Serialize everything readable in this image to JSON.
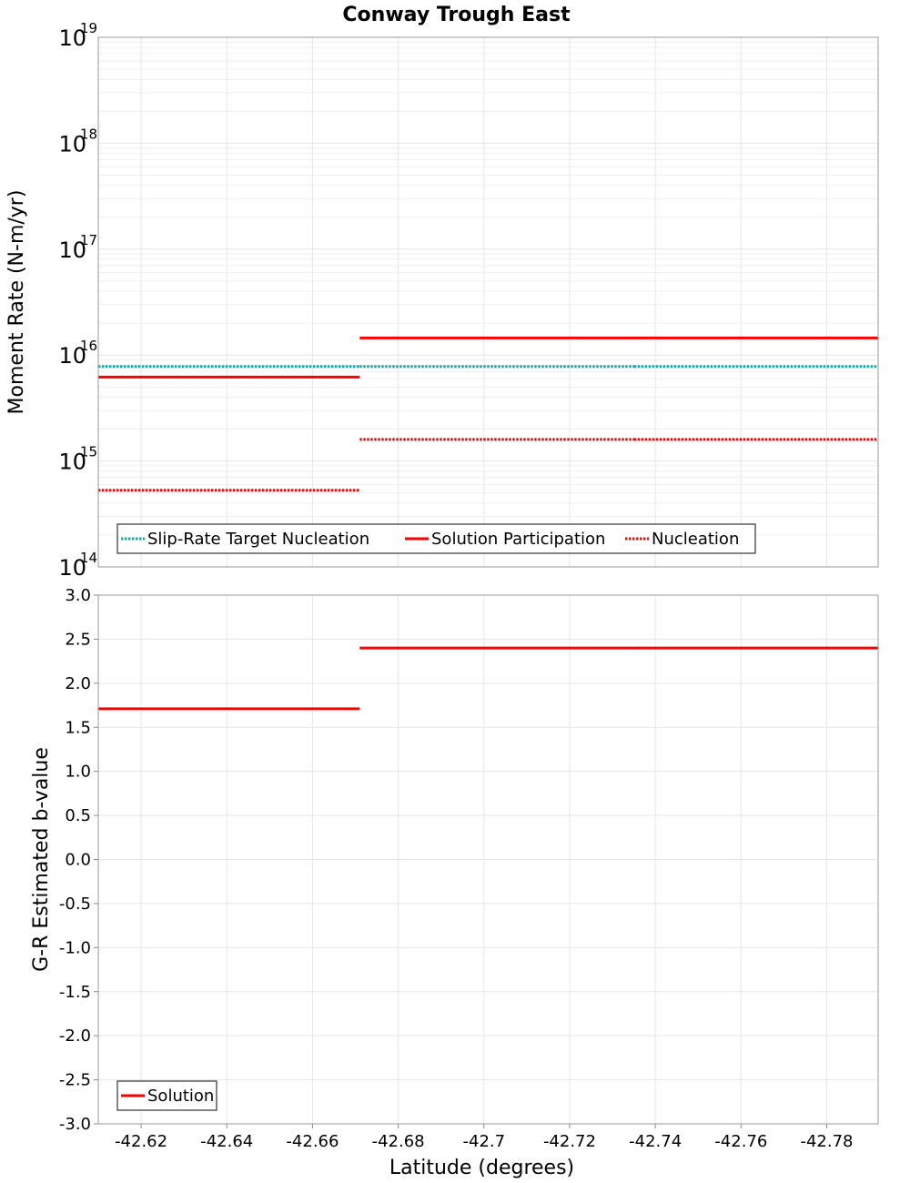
{
  "chart_data": [
    {
      "type": "line",
      "title": "Conway Trough East",
      "xlabel": "Latitude (degrees)",
      "ylabel": "Moment Rate (N-m/yr)",
      "yscale": "log",
      "ylim": [
        100000000000000.0,
        1e+19
      ],
      "xlim": [
        -42.61,
        -42.792
      ],
      "xticks": [
        -42.62,
        -42.64,
        -42.66,
        -42.68,
        -42.7,
        -42.72,
        -42.74,
        -42.76,
        -42.78
      ],
      "xtick_labels": [
        "-42.62",
        "-42.64",
        "-42.66",
        "-42.68",
        "-42.7",
        "-42.72",
        "-42.74",
        "-42.76",
        "-42.78"
      ],
      "ytick_bases": [
        "10",
        "10",
        "10",
        "10",
        "10",
        "10"
      ],
      "ytick_exponents": [
        "14",
        "15",
        "16",
        "17",
        "18",
        "19"
      ],
      "grid": true,
      "legend_position": "bottom-left",
      "series": [
        {
          "name": "Slip-Rate Target Nucleation",
          "color": "#00b0b0",
          "style": "dotted",
          "segments": [
            {
              "x": [
                -42.61,
                -42.671
              ],
              "y": [
                7800000000000000.0,
                7800000000000000.0
              ]
            },
            {
              "x": [
                -42.671,
                -42.735
              ],
              "y": [
                7800000000000000.0,
                7800000000000000.0
              ]
            },
            {
              "x": [
                -42.735,
                -42.792
              ],
              "y": [
                7800000000000000.0,
                7800000000000000.0
              ]
            }
          ]
        },
        {
          "name": "Solution Participation",
          "color": "#ff0000",
          "style": "solid",
          "segments": [
            {
              "x": [
                -42.61,
                -42.671
              ],
              "y": [
                6200000000000000.0,
                6200000000000000.0
              ]
            },
            {
              "x": [
                -42.671,
                -42.735
              ],
              "y": [
                1.45e+16,
                1.45e+16
              ]
            },
            {
              "x": [
                -42.735,
                -42.792
              ],
              "y": [
                1.45e+16,
                1.45e+16
              ]
            }
          ]
        },
        {
          "name": "Nucleation",
          "color": "#ff0000",
          "style": "dotted",
          "segments": [
            {
              "x": [
                -42.61,
                -42.671
              ],
              "y": [
                530000000000000.0,
                530000000000000.0
              ]
            },
            {
              "x": [
                -42.671,
                -42.735
              ],
              "y": [
                1600000000000000.0,
                1600000000000000.0
              ]
            },
            {
              "x": [
                -42.735,
                -42.792
              ],
              "y": [
                1600000000000000.0,
                1600000000000000.0
              ]
            }
          ]
        }
      ]
    },
    {
      "type": "line",
      "title": "",
      "xlabel": "Latitude (degrees)",
      "ylabel": "G-R Estimated b-value",
      "yscale": "linear",
      "ylim": [
        -3.0,
        3.0
      ],
      "xlim": [
        -42.61,
        -42.792
      ],
      "yticks": [
        3.0,
        2.5,
        2.0,
        1.5,
        1.0,
        0.5,
        0.0,
        -0.5,
        -1.0,
        -1.5,
        -2.0,
        -2.5,
        -3.0
      ],
      "ytick_labels": [
        "3.0",
        "2.5",
        "2.0",
        "1.5",
        "1.0",
        "0.5",
        "0.0",
        "-0.5",
        "-1.0",
        "-1.5",
        "-2.0",
        "-2.5",
        "-3.0"
      ],
      "grid": true,
      "legend_position": "bottom-left",
      "series": [
        {
          "name": "Solution",
          "color": "#ff0000",
          "style": "solid",
          "segments": [
            {
              "x": [
                -42.61,
                -42.671
              ],
              "y": [
                1.71,
                1.71
              ]
            },
            {
              "x": [
                -42.671,
                -42.735
              ],
              "y": [
                2.4,
                2.4
              ]
            },
            {
              "x": [
                -42.735,
                -42.792
              ],
              "y": [
                2.4,
                2.4
              ]
            }
          ]
        }
      ]
    }
  ]
}
